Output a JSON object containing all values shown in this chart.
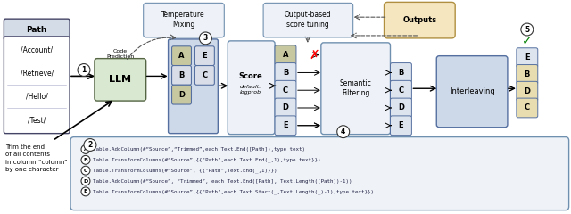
{
  "bg_color": "#ffffff",
  "table_header": "Path",
  "table_rows": [
    "/Account/",
    "/Retrieve/",
    "/Hello/",
    "/Test/"
  ],
  "code_options": [
    "Table.AddColumn(#“Source”,“Trimmed”,each Text.End([Path]),type text)",
    "Table.TransformColumns(#“Source”,{{\"Path\",each Text.End(_,1),type text}})",
    "Table.TransformColumns(#“Source”, {{\"Path\",Text.End(_,1)}})",
    "Table.AddColumn(#“Source”, “Trimmed”, each Text.End([Path], Text.Length([Path])-1))",
    "Table.TransformColumns(#“Source”,{{\"Path\",each Text.Start(_,Text.Length(_)-1),type text}})"
  ],
  "code_labels": [
    "A",
    "B",
    "C",
    "D",
    "E"
  ],
  "natural_lang": "Trim the end\nof all contents\nin column “column”\nby one character"
}
